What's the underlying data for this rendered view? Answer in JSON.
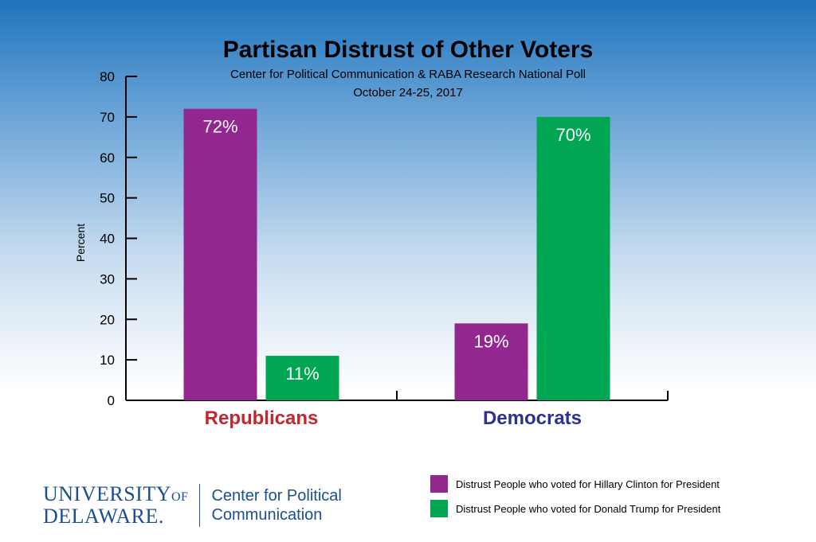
{
  "chart_data": {
    "type": "bar",
    "title": "Partisan Distrust of Other Voters",
    "subtitle": "Center for Political Communication & RABA Research National Poll",
    "date": "October 24-25, 2017",
    "ylabel": "Percent",
    "xlabel": "",
    "ylim": [
      0,
      80
    ],
    "yticks": [
      0,
      10,
      20,
      30,
      40,
      50,
      60,
      70,
      80
    ],
    "categories": [
      "Republicans",
      "Democrats"
    ],
    "category_colors": [
      "#c2262e",
      "#2e3192"
    ],
    "series": [
      {
        "name": "Distrust People who voted for Hillary Clinton for President",
        "color": "#92278f",
        "values": [
          72,
          19
        ],
        "labels": [
          "72%",
          "19%"
        ]
      },
      {
        "name": "Distrust People who voted for Donald Trump for President",
        "color": "#00a651",
        "values": [
          11,
          70
        ],
        "labels": [
          "11%",
          "70%"
        ]
      }
    ],
    "grid": false,
    "legend_position": "bottom-right"
  },
  "footer": {
    "logo_line1": "NIVERSITY",
    "logo_of": "OF",
    "logo_line2": "ELAWARE.",
    "logo_letters": "UD",
    "cpc_line1": "Center for Political",
    "cpc_line2": "Communication"
  }
}
